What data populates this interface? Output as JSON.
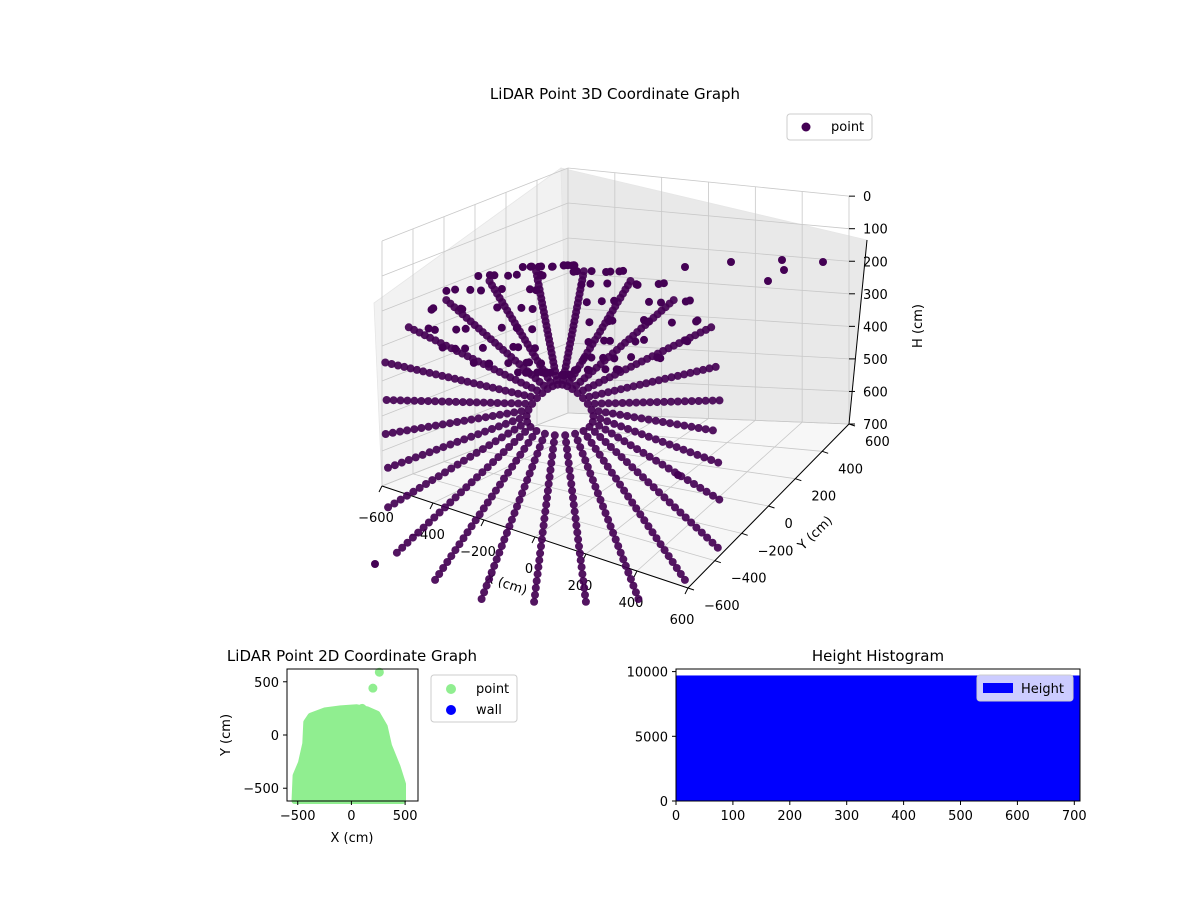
{
  "chart_data": [
    {
      "type": "scatter",
      "title": "LiDAR Point 3D Coordinate Graph",
      "xlabel": "X (cm)",
      "ylabel": "Y (cm)",
      "zlabel": "H (cm)",
      "legend": {
        "entries": [
          "point"
        ],
        "placement": "top-right"
      },
      "xlim": [
        -600,
        600
      ],
      "ylim": [
        -600,
        600
      ],
      "zlim": [
        700,
        0
      ],
      "x_ticks": [
        "−600",
        "−400",
        "−200",
        "0",
        "200",
        "400",
        "600"
      ],
      "y_ticks": [
        "−600",
        "−400",
        "−200",
        "0",
        "200",
        "400",
        "600"
      ],
      "z_ticks": [
        "0",
        "100",
        "200",
        "300",
        "400",
        "500",
        "600",
        "700"
      ],
      "grid": true,
      "series": [
        {
          "name": "point",
          "color": "#440154",
          "outliers": [
            {
              "x": 250,
              "y": 560,
              "h": 10
            },
            {
              "x": 380,
              "y": 560,
              "h": 20
            },
            {
              "x": 420,
              "y": 520,
              "h": 30
            },
            {
              "x": 460,
              "y": 500,
              "h": 60
            },
            {
              "x": 480,
              "y": 470,
              "h": 10
            },
            {
              "x": 580,
              "y": 600,
              "h": 20
            },
            {
              "x": -650,
              "y": -550,
              "h": 650
            },
            {
              "x": 250,
              "y": -150,
              "h": 500
            }
          ]
        }
      ]
    },
    {
      "type": "scatter",
      "title": "LiDAR Point 2D Coordinate Graph",
      "xlabel": "X (cm)",
      "ylabel": "Y (cm)",
      "xlim": [
        -600,
        620
      ],
      "ylim": [
        -620,
        620
      ],
      "x_ticks": [
        -500,
        0,
        500
      ],
      "y_ticks": [
        -500,
        0,
        500
      ],
      "legend": {
        "entries": [
          "point",
          "wall"
        ],
        "placement": "outside-right"
      },
      "series": [
        {
          "name": "point",
          "color": "#90ee90",
          "outline": [
            [
              -530,
              -620
            ],
            [
              -520,
              -380
            ],
            [
              -470,
              -260
            ],
            [
              -430,
              -80
            ],
            [
              -420,
              120
            ],
            [
              -380,
              180
            ],
            [
              -250,
              230
            ],
            [
              -100,
              250
            ],
            [
              50,
              260
            ],
            [
              150,
              240
            ],
            [
              240,
              200
            ],
            [
              310,
              80
            ],
            [
              350,
              -100
            ],
            [
              430,
              -300
            ],
            [
              480,
              -460
            ],
            [
              480,
              -620
            ]
          ],
          "outliers": [
            {
              "x": 260,
              "y": 590
            },
            {
              "x": 200,
              "y": 440
            },
            {
              "x": 100,
              "y": 250
            }
          ]
        },
        {
          "name": "wall",
          "color": "#0000ff"
        }
      ]
    },
    {
      "type": "bar",
      "title": "Height Histogram",
      "xlim": [
        0,
        710
      ],
      "ylim": [
        0,
        10200
      ],
      "x_ticks": [
        0,
        100,
        200,
        300,
        400,
        500,
        600,
        700
      ],
      "y_ticks": [
        0,
        5000,
        10000
      ],
      "legend": {
        "entries": [
          "Height"
        ],
        "placement": "top-right"
      },
      "series": [
        {
          "name": "Height",
          "color": "#0000ff",
          "bins": [
            {
              "x0": 0,
              "x1": 710,
              "count": 9700
            }
          ]
        }
      ]
    }
  ]
}
